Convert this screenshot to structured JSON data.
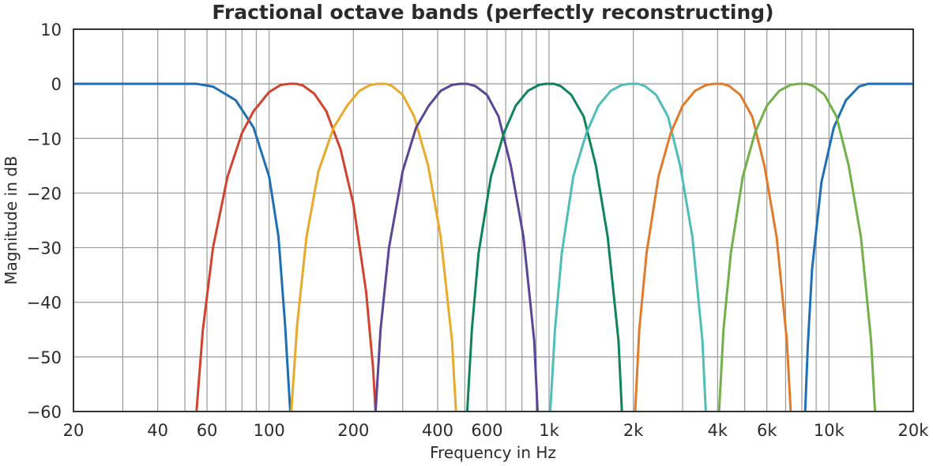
{
  "chart_data": {
    "type": "line",
    "title": "Fractional octave bands (perfectly reconstructing)",
    "xlabel": "Frequency in Hz",
    "ylabel": "Magnitude in dB",
    "x_scale": "log",
    "xlim": [
      20,
      20000
    ],
    "ylim": [
      -60,
      10
    ],
    "grid": true,
    "x_ticks": [
      20,
      40,
      60,
      100,
      200,
      400,
      600,
      1000,
      2000,
      4000,
      6000,
      10000,
      20000
    ],
    "x_tick_labels": [
      "20",
      "40",
      "60",
      "100",
      "200",
      "400",
      "600",
      "1k",
      "2k",
      "4k",
      "6k",
      "10k",
      "20k"
    ],
    "y_ticks": [
      10,
      0,
      -10,
      -20,
      -30,
      -40,
      -50,
      -60
    ],
    "y_tick_labels": [
      "10",
      "0",
      "−10",
      "−20",
      "−30",
      "−40",
      "−50",
      "−60"
    ],
    "series": [
      {
        "color": "#1f6fb5",
        "points": [
          [
            20,
            0
          ],
          [
            55,
            0
          ],
          [
            63,
            -0.5
          ],
          [
            76,
            -3
          ],
          [
            88,
            -8
          ],
          [
            100,
            -17
          ],
          [
            108,
            -28
          ],
          [
            114,
            -44
          ],
          [
            119,
            -60
          ]
        ]
      },
      {
        "color": "#1f6fb5",
        "points": [
          [
            8220,
            -60
          ],
          [
            8400,
            -48
          ],
          [
            8700,
            -34
          ],
          [
            9400,
            -18
          ],
          [
            10400,
            -8
          ],
          [
            11500,
            -3
          ],
          [
            12800,
            -0.5
          ],
          [
            13800,
            0
          ],
          [
            20000,
            0
          ]
        ]
      },
      {
        "color": "#d1432f",
        "points": [
          [
            55,
            -60
          ],
          [
            58,
            -45
          ],
          [
            63,
            -30
          ],
          [
            71,
            -17
          ],
          [
            80,
            -9
          ],
          [
            88,
            -5
          ],
          [
            100,
            -1.5
          ],
          [
            110,
            -0.2
          ],
          [
            118,
            0
          ],
          [
            125,
            0
          ],
          [
            132,
            -0.3
          ],
          [
            145,
            -1.8
          ],
          [
            160,
            -5
          ],
          [
            180,
            -12
          ],
          [
            200,
            -22
          ],
          [
            222,
            -38
          ],
          [
            235,
            -52
          ],
          [
            240,
            -60
          ]
        ]
      },
      {
        "color": "#e8aa2b",
        "points": [
          [
            120,
            -60
          ],
          [
            126,
            -44
          ],
          [
            136,
            -28
          ],
          [
            150,
            -16
          ],
          [
            170,
            -8
          ],
          [
            190,
            -4
          ],
          [
            210,
            -1.3
          ],
          [
            230,
            -0.2
          ],
          [
            245,
            0
          ],
          [
            262,
            0
          ],
          [
            275,
            -0.4
          ],
          [
            300,
            -2
          ],
          [
            330,
            -6
          ],
          [
            370,
            -15
          ],
          [
            410,
            -28
          ],
          [
            450,
            -47
          ],
          [
            465,
            -60
          ]
        ]
      },
      {
        "color": "#5a4596",
        "points": [
          [
            240,
            -60
          ],
          [
            250,
            -45
          ],
          [
            268,
            -30
          ],
          [
            300,
            -16
          ],
          [
            335,
            -8
          ],
          [
            372,
            -4
          ],
          [
            410,
            -1.3
          ],
          [
            450,
            -0.2
          ],
          [
            480,
            0
          ],
          [
            510,
            0
          ],
          [
            545,
            -0.4
          ],
          [
            600,
            -2
          ],
          [
            660,
            -6
          ],
          [
            730,
            -15
          ],
          [
            810,
            -28
          ],
          [
            885,
            -47
          ],
          [
            910,
            -60
          ]
        ]
      },
      {
        "color": "#0e8457",
        "points": [
          [
            510,
            -60
          ],
          [
            530,
            -45
          ],
          [
            560,
            -31
          ],
          [
            620,
            -17
          ],
          [
            690,
            -9
          ],
          [
            760,
            -4
          ],
          [
            840,
            -1.3
          ],
          [
            920,
            -0.2
          ],
          [
            970,
            0
          ],
          [
            1040,
            0
          ],
          [
            1100,
            -0.4
          ],
          [
            1200,
            -2
          ],
          [
            1330,
            -6
          ],
          [
            1470,
            -15
          ],
          [
            1620,
            -28
          ],
          [
            1770,
            -47
          ],
          [
            1820,
            -60
          ]
        ]
      },
      {
        "color": "#4fbdb8",
        "points": [
          [
            1010,
            -60
          ],
          [
            1050,
            -45
          ],
          [
            1110,
            -31
          ],
          [
            1220,
            -17
          ],
          [
            1360,
            -9
          ],
          [
            1500,
            -4
          ],
          [
            1660,
            -1.3
          ],
          [
            1820,
            -0.2
          ],
          [
            1940,
            0
          ],
          [
            2080,
            0
          ],
          [
            2200,
            -0.4
          ],
          [
            2410,
            -2
          ],
          [
            2660,
            -6
          ],
          [
            2940,
            -15
          ],
          [
            3250,
            -28
          ],
          [
            3530,
            -47
          ],
          [
            3630,
            -60
          ]
        ]
      },
      {
        "color": "#e07b2b",
        "points": [
          [
            2030,
            -60
          ],
          [
            2100,
            -45
          ],
          [
            2230,
            -31
          ],
          [
            2460,
            -17
          ],
          [
            2720,
            -9
          ],
          [
            3000,
            -4
          ],
          [
            3320,
            -1.3
          ],
          [
            3640,
            -0.2
          ],
          [
            3880,
            0
          ],
          [
            4160,
            0
          ],
          [
            4400,
            -0.4
          ],
          [
            4820,
            -2
          ],
          [
            5320,
            -6
          ],
          [
            5880,
            -15
          ],
          [
            6500,
            -28
          ],
          [
            7070,
            -47
          ],
          [
            7300,
            -60
          ]
        ]
      },
      {
        "color": "#72b04a",
        "points": [
          [
            4050,
            -60
          ],
          [
            4200,
            -45
          ],
          [
            4460,
            -31
          ],
          [
            4920,
            -17
          ],
          [
            5440,
            -9
          ],
          [
            6000,
            -4
          ],
          [
            6640,
            -1.3
          ],
          [
            7280,
            -0.2
          ],
          [
            7760,
            0
          ],
          [
            8320,
            0
          ],
          [
            8800,
            -0.4
          ],
          [
            9640,
            -2
          ],
          [
            10640,
            -6
          ],
          [
            11760,
            -15
          ],
          [
            13000,
            -28
          ],
          [
            14140,
            -47
          ],
          [
            14600,
            -60
          ]
        ]
      }
    ]
  }
}
